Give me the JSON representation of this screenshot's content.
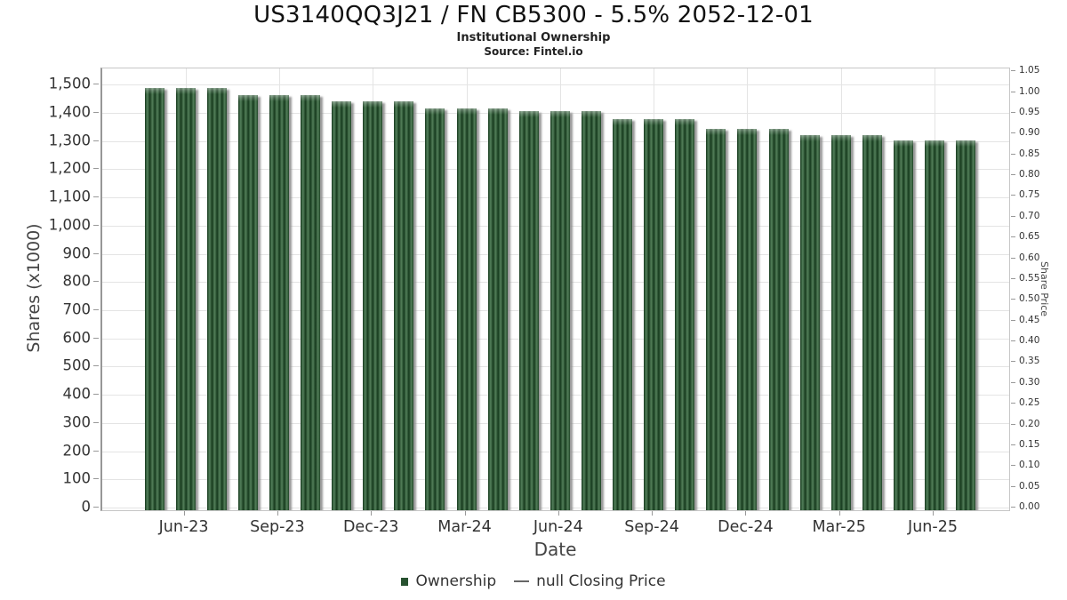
{
  "header": {
    "title": "US3140QQ3J21 / FN CB5300 - 5.5% 2052-12-01",
    "subtitle": "Institutional Ownership",
    "source": "Source: Fintel.io"
  },
  "chart_data": {
    "type": "bar",
    "title": "US3140QQ3J21 / FN CB5300 - 5.5% 2052-12-01",
    "subtitle": "Institutional Ownership",
    "source": "Source: Fintel.io",
    "xlabel": "Date",
    "ylabel_left": "Shares (x1000)",
    "ylabel_right": "Share Price",
    "ylim_left": [
      0,
      1500
    ],
    "ylim_right": [
      0.0,
      1.05
    ],
    "grid": true,
    "legend_position": "bottom-center",
    "categories": [
      "May-23",
      "Jun-23",
      "Jul-23",
      "Aug-23",
      "Sep-23",
      "Oct-23",
      "Nov-23",
      "Dec-23",
      "Jan-24",
      "Feb-24",
      "Mar-24",
      "Apr-24",
      "May-24",
      "Jun-24",
      "Jul-24",
      "Aug-24",
      "Sep-24",
      "Oct-24",
      "Nov-24",
      "Dec-24",
      "Jan-25",
      "Feb-25",
      "Mar-25",
      "Apr-25",
      "May-25",
      "Jun-25",
      "Jul-25"
    ],
    "series": [
      {
        "name": "Ownership",
        "color": "#27512f",
        "values": [
          1483,
          1483,
          1483,
          1458,
          1458,
          1458,
          1436,
          1436,
          1436,
          1411,
          1411,
          1411,
          1400,
          1400,
          1400,
          1373,
          1373,
          1373,
          1338,
          1338,
          1338,
          1316,
          1316,
          1316,
          1297,
          1297,
          1297
        ]
      }
    ],
    "right_axis_series": {
      "name": "null Closing Price",
      "values": []
    },
    "y_ticks_left": [
      "0",
      "100",
      "200",
      "300",
      "400",
      "500",
      "600",
      "700",
      "800",
      "900",
      "1,000",
      "1,100",
      "1,200",
      "1,300",
      "1,400",
      "1,500"
    ],
    "y_ticks_right": [
      "0.00",
      "0.05",
      "0.10",
      "0.15",
      "0.20",
      "0.25",
      "0.30",
      "0.35",
      "0.40",
      "0.45",
      "0.50",
      "0.55",
      "0.60",
      "0.65",
      "0.70",
      "0.75",
      "0.80",
      "0.85",
      "0.90",
      "0.95",
      "1.00",
      "1.05"
    ],
    "x_ticks": [
      {
        "label": "Jun-23",
        "index": 1
      },
      {
        "label": "Sep-23",
        "index": 4
      },
      {
        "label": "Dec-23",
        "index": 7
      },
      {
        "label": "Mar-24",
        "index": 10
      },
      {
        "label": "Jun-24",
        "index": 13
      },
      {
        "label": "Sep-24",
        "index": 16
      },
      {
        "label": "Dec-24",
        "index": 19
      },
      {
        "label": "Mar-25",
        "index": 22
      },
      {
        "label": "Jun-25",
        "index": 25
      }
    ],
    "legend": {
      "items": [
        {
          "label": "Ownership",
          "marker": "square",
          "color": "#27512f"
        },
        {
          "label": "null Closing Price",
          "marker": "dash",
          "color": "#666666"
        }
      ]
    },
    "colors": {
      "bar_dark": "#163a1d",
      "bar_light": "#537f5a",
      "bar_shadow": "#878787",
      "gridline": "#e4e4e4",
      "axis_text": "#333333",
      "axis_title": "#444444"
    }
  }
}
